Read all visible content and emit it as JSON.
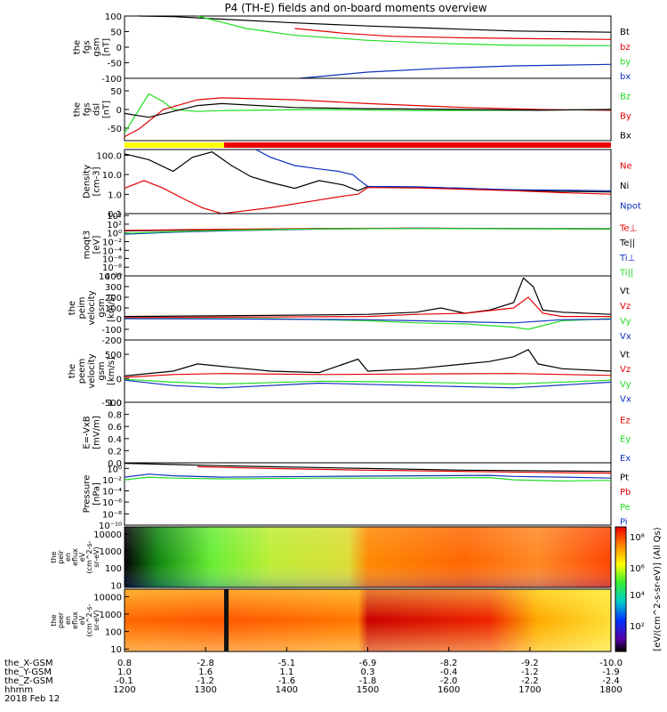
{
  "title": "P4 (TH-E) fields and on-board moments overview",
  "colors": {
    "black": "#000000",
    "red": "#e00000",
    "green": "#22dd22",
    "blue": "#1030c0",
    "yellow": "#ffff00",
    "bar_red": "#ee0000"
  },
  "chart_data": {
    "type": "line",
    "panels": [
      {
        "id": "fgs-gsm",
        "ylabel": [
          "the",
          "fgs",
          "gsm",
          "[nT]"
        ],
        "ticks": [
          "100",
          "50",
          "0",
          "-50",
          "-100"
        ],
        "legend": [
          {
            "name": "Bt",
            "color": "black"
          },
          {
            "name": "bz",
            "color": "red"
          },
          {
            "name": "by",
            "color": "green"
          },
          {
            "name": "bx",
            "color": "blue"
          }
        ],
        "series": [
          {
            "name": "Bt",
            "color": "black",
            "x": [
              0.03,
              0.1,
              0.2,
              0.35,
              0.5,
              0.65,
              0.8,
              1.0
            ],
            "y": [
              100,
              98,
              90,
              78,
              68,
              60,
              52,
              48
            ]
          },
          {
            "name": "bz",
            "color": "red",
            "x": [
              0.35,
              0.45,
              0.55,
              0.7,
              0.85,
              1.0
            ],
            "y": [
              60,
              45,
              35,
              30,
              27,
              25
            ]
          },
          {
            "name": "by",
            "color": "green",
            "x": [
              0.15,
              0.25,
              0.35,
              0.5,
              0.65,
              0.8,
              1.0
            ],
            "y": [
              100,
              60,
              38,
              22,
              12,
              6,
              5
            ]
          },
          {
            "name": "bx",
            "color": "blue",
            "x": [
              0.36,
              0.5,
              0.65,
              0.8,
              1.0
            ],
            "y": [
              -100,
              -80,
              -68,
              -60,
              -55
            ]
          }
        ]
      },
      {
        "id": "fgs-dsl",
        "ylabel": [
          "the",
          "fgs",
          "dsl",
          "[nT]"
        ],
        "ticks": [
          "50",
          "0",
          "-50"
        ],
        "legend": [
          {
            "name": "Bz",
            "color": "green"
          },
          {
            "name": "By",
            "color": "red"
          },
          {
            "name": "Bx",
            "color": "black"
          }
        ],
        "series": [
          {
            "name": "Bz",
            "color": "green",
            "x": [
              0.0,
              0.03,
              0.05,
              0.08,
              0.1,
              0.15,
              0.2,
              0.4,
              0.6,
              0.8,
              1.0
            ],
            "y": [
              -60,
              0,
              40,
              20,
              0,
              -5,
              -3,
              0,
              -3,
              -2,
              0
            ]
          },
          {
            "name": "By",
            "color": "red",
            "x": [
              0.0,
              0.03,
              0.08,
              0.15,
              0.2,
              0.35,
              0.5,
              0.7,
              0.85,
              1.0
            ],
            "y": [
              -70,
              -50,
              0,
              25,
              30,
              25,
              15,
              5,
              0,
              -2
            ]
          },
          {
            "name": "Bx",
            "color": "black",
            "x": [
              0.0,
              0.05,
              0.1,
              0.15,
              0.2,
              0.35,
              0.5,
              0.7,
              0.85,
              1.0
            ],
            "y": [
              -10,
              -20,
              -5,
              10,
              15,
              5,
              2,
              0,
              -2,
              0
            ]
          }
        ]
      },
      {
        "id": "density",
        "ylabel": [
          "Density",
          "[cm-3]"
        ],
        "log": true,
        "ticks": [
          "100.0",
          "10.0",
          "1.0",
          "0.1"
        ],
        "legend": [
          {
            "name": "Ne",
            "color": "red"
          },
          {
            "name": "Ni",
            "color": "black"
          },
          {
            "name": "Npot",
            "color": "blue"
          }
        ],
        "series": [
          {
            "name": "Ni",
            "color": "black",
            "x": [
              0.0,
              0.05,
              0.1,
              0.14,
              0.18,
              0.22,
              0.26,
              0.3,
              0.35,
              0.4,
              0.45,
              0.48,
              0.5,
              0.6,
              0.7,
              0.8,
              0.9,
              1.0
            ],
            "y": [
              120,
              60,
              15,
              80,
              150,
              30,
              8,
              4,
              2,
              5,
              3,
              1.5,
              2.5,
              2.3,
              2,
              1.6,
              1.4,
              1.3
            ]
          },
          {
            "name": "Npot",
            "color": "blue",
            "x": [
              0.27,
              0.3,
              0.35,
              0.4,
              0.44,
              0.47,
              0.48,
              0.5,
              0.6,
              0.7,
              0.8,
              0.9,
              1.0
            ],
            "y": [
              200,
              80,
              30,
              20,
              15,
              10,
              6,
              2.5,
              2.4,
              2,
              1.7,
              1.6,
              1.5
            ]
          },
          {
            "name": "Ne",
            "color": "red",
            "x": [
              0.0,
              0.04,
              0.08,
              0.12,
              0.16,
              0.2,
              0.3,
              0.4,
              0.45,
              0.48,
              0.5,
              0.6,
              0.7,
              0.8,
              0.9,
              1.0
            ],
            "y": [
              2,
              5,
              2,
              0.6,
              0.2,
              0.1,
              0.2,
              0.5,
              0.8,
              1.0,
              2.2,
              2.1,
              1.8,
              1.5,
              1.2,
              1.0
            ]
          }
        ]
      },
      {
        "id": "moqt3",
        "ylabel": [
          "moqt3",
          "[eV]"
        ],
        "log": true,
        "ticks": [
          "10⁴",
          "10²",
          "10⁰",
          "10⁻²",
          "10⁻⁴",
          "10⁻⁶",
          "10⁻⁸",
          "10⁻¹⁰"
        ],
        "legend": [
          {
            "name": "Te⊥",
            "color": "red"
          },
          {
            "name": "Te||",
            "color": "black"
          },
          {
            "name": "Ti⊥",
            "color": "blue"
          },
          {
            "name": "Ti||",
            "color": "green"
          }
        ],
        "series": [
          {
            "name": "Te||",
            "color": "black",
            "x": [
              0.0,
              0.2,
              0.4,
              0.6,
              0.8,
              1.0
            ],
            "y": [
              3,
              6,
              10,
              12,
              10,
              8
            ]
          },
          {
            "name": "Te⊥",
            "color": "red",
            "x": [
              0.0,
              0.2,
              0.4,
              0.6,
              0.8,
              1.0
            ],
            "y": [
              4,
              7,
              11,
              13,
              11,
              9
            ]
          },
          {
            "name": "Ti⊥",
            "color": "blue",
            "x": [
              0.0,
              0.1,
              0.2,
              0.4,
              0.6,
              0.8,
              1.0
            ],
            "y": [
              0.5,
              1.5,
              3,
              8,
              12,
              10,
              10
            ]
          },
          {
            "name": "Ti||",
            "color": "green",
            "x": [
              0.0,
              0.1,
              0.2,
              0.4,
              0.6,
              0.8,
              1.0
            ],
            "y": [
              0.8,
              2,
              4,
              9,
              11,
              9,
              9
            ]
          }
        ]
      },
      {
        "id": "peim",
        "ylabel": [
          "the",
          "peim",
          "velocity",
          "gsm",
          "[km/s]"
        ],
        "ticks": [
          "400",
          "300",
          "200",
          "100",
          "0",
          "-100",
          "-200"
        ],
        "legend": [
          {
            "name": "Vt",
            "color": "black"
          },
          {
            "name": "Vz",
            "color": "red"
          },
          {
            "name": "Vy",
            "color": "green"
          },
          {
            "name": "Vx",
            "color": "blue"
          }
        ],
        "series": [
          {
            "name": "Vt",
            "color": "black",
            "x": [
              0.0,
              0.3,
              0.5,
              0.6,
              0.65,
              0.7,
              0.75,
              0.8,
              0.82,
              0.84,
              0.86,
              0.9,
              1.0
            ],
            "y": [
              20,
              30,
              40,
              60,
              100,
              50,
              80,
              150,
              380,
              300,
              80,
              60,
              40
            ]
          },
          {
            "name": "Vz",
            "color": "red",
            "x": [
              0.0,
              0.3,
              0.5,
              0.6,
              0.7,
              0.8,
              0.83,
              0.86,
              0.9,
              1.0
            ],
            "y": [
              10,
              15,
              20,
              40,
              50,
              100,
              200,
              50,
              20,
              20
            ]
          },
          {
            "name": "Vy",
            "color": "green",
            "x": [
              0.0,
              0.3,
              0.5,
              0.6,
              0.7,
              0.8,
              0.83,
              0.9,
              1.0
            ],
            "y": [
              0,
              0,
              -20,
              -40,
              -50,
              -80,
              -100,
              -20,
              0
            ]
          },
          {
            "name": "Vx",
            "color": "blue",
            "x": [
              0.0,
              0.3,
              0.5,
              0.6,
              0.7,
              0.8,
              0.9,
              1.0
            ],
            "y": [
              0,
              -5,
              -10,
              -20,
              -30,
              -40,
              -10,
              -5
            ]
          }
        ]
      },
      {
        "id": "peem",
        "ylabel": [
          "the",
          "peem",
          "velocity",
          "gsm",
          "[km/s]"
        ],
        "ticks": [
          "500",
          "0",
          "-500"
        ],
        "legend": [
          {
            "name": "Vt",
            "color": "black"
          },
          {
            "name": "Vz",
            "color": "red"
          },
          {
            "name": "Vy",
            "color": "green"
          },
          {
            "name": "Vx",
            "color": "blue"
          }
        ],
        "series": [
          {
            "name": "Vt",
            "color": "black",
            "x": [
              0.0,
              0.1,
              0.15,
              0.2,
              0.3,
              0.4,
              0.48,
              0.5,
              0.6,
              0.7,
              0.75,
              0.8,
              0.83,
              0.85,
              0.9,
              1.0
            ],
            "y": [
              50,
              150,
              300,
              250,
              150,
              120,
              400,
              150,
              200,
              300,
              350,
              450,
              600,
              300,
              200,
              150
            ]
          },
          {
            "name": "Vz",
            "color": "red",
            "x": [
              0.0,
              0.1,
              0.2,
              0.4,
              0.6,
              0.8,
              1.0
            ],
            "y": [
              20,
              80,
              100,
              80,
              90,
              100,
              60
            ]
          },
          {
            "name": "Vy",
            "color": "green",
            "x": [
              0.0,
              0.1,
              0.2,
              0.4,
              0.6,
              0.8,
              1.0
            ],
            "y": [
              -20,
              -80,
              -120,
              -60,
              -80,
              -120,
              -40
            ]
          },
          {
            "name": "Vx",
            "color": "blue",
            "x": [
              0.0,
              0.1,
              0.2,
              0.4,
              0.6,
              0.8,
              1.0
            ],
            "y": [
              -40,
              -150,
              -200,
              -100,
              -150,
              -200,
              -80
            ]
          }
        ]
      },
      {
        "id": "efield",
        "ylabel": [
          "E=-VxB",
          "[mV/m]"
        ],
        "ticks": [
          "1.0",
          "0.8",
          "0.6",
          "0.4",
          "0.2",
          "0.0"
        ],
        "legend": [
          {
            "name": "Ez",
            "color": "red"
          },
          {
            "name": "Ey",
            "color": "green"
          },
          {
            "name": "Ex",
            "color": "blue"
          }
        ],
        "series": []
      },
      {
        "id": "pressure",
        "ylabel": [
          "Pressure",
          "[nPa]"
        ],
        "log": true,
        "ticks": [
          "10⁰",
          "10⁻²",
          "10⁻⁴",
          "10⁻⁶",
          "10⁻⁸",
          "10⁻¹⁰"
        ],
        "legend": [
          {
            "name": "Pt",
            "color": "black"
          },
          {
            "name": "Pb",
            "color": "red"
          },
          {
            "name": "Pe",
            "color": "green"
          },
          {
            "name": "Pi",
            "color": "blue"
          }
        ],
        "series": [
          {
            "name": "Pt",
            "color": "black",
            "x": [
              0.0,
              0.1,
              0.2,
              0.3,
              0.5,
              0.7,
              1.0
            ],
            "y": [
              8,
              5,
              3,
              2,
              1,
              0.5,
              0.3
            ]
          },
          {
            "name": "Pb",
            "color": "red",
            "x": [
              0.15,
              0.3,
              0.5,
              0.7,
              0.85,
              1.0
            ],
            "y": [
              2,
              1,
              0.5,
              0.3,
              0.2,
              0.15
            ]
          },
          {
            "name": "Pi",
            "color": "blue",
            "x": [
              0.0,
              0.05,
              0.1,
              0.2,
              0.4,
              0.6,
              0.75,
              0.8,
              0.9,
              1.0
            ],
            "y": [
              0.03,
              0.1,
              0.05,
              0.03,
              0.04,
              0.05,
              0.06,
              0.04,
              0.03,
              0.02
            ]
          },
          {
            "name": "Pe",
            "color": "green",
            "x": [
              0.0,
              0.05,
              0.1,
              0.2,
              0.4,
              0.6,
              0.75,
              0.8,
              0.9,
              1.0
            ],
            "y": [
              0.01,
              0.03,
              0.02,
              0.015,
              0.02,
              0.02,
              0.025,
              0.01,
              0.006,
              0.008
            ]
          }
        ]
      }
    ],
    "spectrograms": [
      {
        "id": "peir",
        "ylabel": [
          "the",
          "peir",
          "en",
          "eflux",
          "eV",
          "(cm^2-s-",
          "sr-eV)"
        ],
        "ticks": [
          "10000",
          "1000",
          "100",
          "10"
        ]
      },
      {
        "id": "peer",
        "ylabel": [
          "the",
          "peer",
          "en",
          "eflux",
          "eV",
          "(cm^2-s-",
          "sr-eV)"
        ],
        "ticks": [
          "10000",
          "1000",
          "100",
          "10"
        ]
      }
    ],
    "colorbar": {
      "ticks": [
        "10⁸",
        "10⁶",
        "10⁴",
        "10²"
      ],
      "label": "[eV/(cm^2-s-sr-eV)] (All Qs)"
    },
    "x_axis": {
      "rows": [
        {
          "label": "the_X-GSM",
          "values": [
            "0.8",
            "-2.8",
            "-5.1",
            "-6.9",
            "-8.2",
            "-9.2",
            "-10.0"
          ]
        },
        {
          "label": "the_Y-GSM",
          "values": [
            "1.0",
            "1.6",
            "1.1",
            "0.3",
            "-0.4",
            "-1.2",
            "-1.9"
          ]
        },
        {
          "label": "the_Z-GSM",
          "values": [
            "-0.1",
            "-1.2",
            "-1.6",
            "-1.8",
            "-2.0",
            "-2.2",
            "-2.4"
          ]
        },
        {
          "label": "hhmm",
          "values": [
            "1200",
            "1300",
            "1400",
            "1500",
            "1600",
            "1700",
            "1800"
          ]
        }
      ],
      "date": "2018 Feb 12"
    }
  }
}
